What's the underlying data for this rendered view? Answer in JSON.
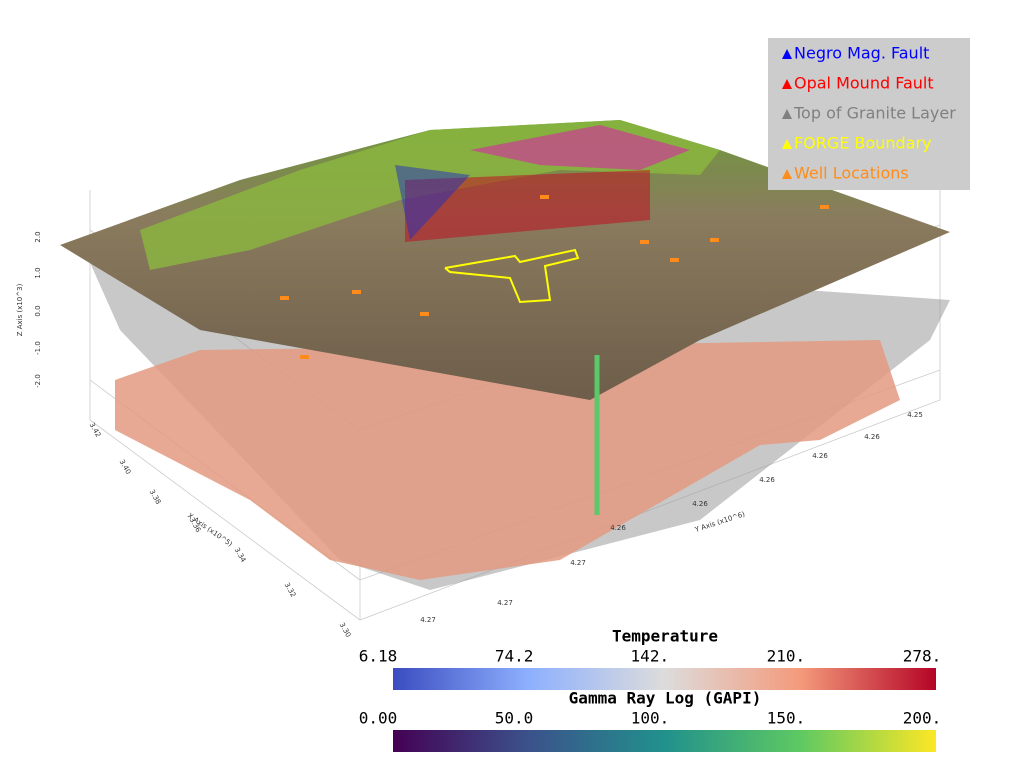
{
  "legend": [
    {
      "label": "Negro Mag. Fault",
      "color": "#0000ff"
    },
    {
      "label": "Opal Mound Fault",
      "color": "#ff0000"
    },
    {
      "label": "Top of Granite Layer",
      "color": "#808080"
    },
    {
      "label": "FORGE Boundary",
      "color": "#ffff00"
    },
    {
      "label": "Well Locations",
      "color": "#ff8c1a"
    }
  ],
  "colorbars": [
    {
      "title": "Temperature",
      "range": [
        6.18,
        278
      ],
      "ticks": [
        {
          "value": 6.18,
          "label": "6.18"
        },
        {
          "value": 74.2,
          "label": "74.2"
        },
        {
          "value": 142,
          "label": "142."
        },
        {
          "value": 210,
          "label": "210."
        },
        {
          "value": 278,
          "label": "278."
        }
      ],
      "colors": [
        "#3b4cc0",
        "#8db0fe",
        "#dddcdc",
        "#f49a7b",
        "#b40426"
      ]
    },
    {
      "title": "Gamma Ray Log (GAPI)",
      "range": [
        0,
        200
      ],
      "ticks": [
        {
          "value": 0,
          "label": "0.00"
        },
        {
          "value": 50,
          "label": "50.0"
        },
        {
          "value": 100,
          "label": "100."
        },
        {
          "value": 150,
          "label": "150."
        },
        {
          "value": 200,
          "label": "200."
        }
      ],
      "colors": [
        "#440154",
        "#3b528b",
        "#21918c",
        "#5ec962",
        "#fde725"
      ]
    }
  ],
  "axes": {
    "z": {
      "title": "Z Axis (x10^3)",
      "ticks": [
        "2.0",
        "1.0",
        "0.0",
        "-1.0",
        "-2.0"
      ]
    },
    "y": {
      "title": "Y Axis (x10^6)",
      "ticks": [
        "4.27",
        "4.27",
        "4.27",
        "4.26",
        "4.26",
        "4.26",
        "4.26",
        "4.26",
        "4.25"
      ]
    },
    "x": {
      "title": "X Axis (x10^5)",
      "ticks": [
        "3.42",
        "3.40",
        "3.38",
        "3.36",
        "3.34",
        "3.32",
        "3.30"
      ]
    }
  }
}
